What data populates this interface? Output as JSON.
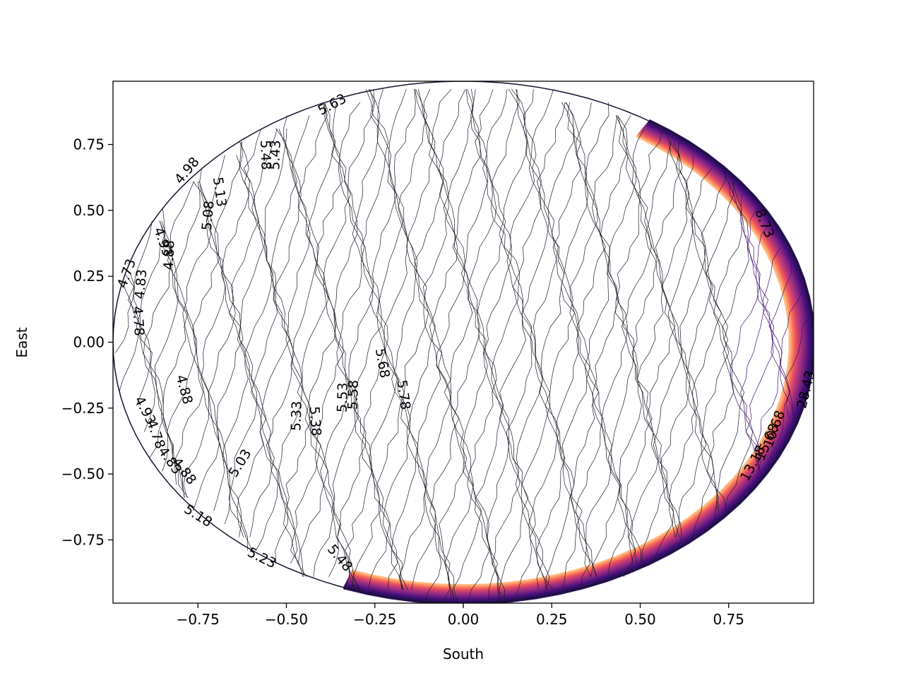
{
  "chart_data": {
    "type": "contour",
    "xlabel": "South",
    "ylabel": "East",
    "xlim": [
      -0.99,
      0.99
    ],
    "ylim": [
      -0.99,
      0.99
    ],
    "xticks": [
      -0.75,
      -0.5,
      -0.25,
      0.0,
      0.25,
      0.5,
      0.75
    ],
    "yticks": [
      -0.75,
      -0.5,
      -0.25,
      0.0,
      0.25,
      0.5,
      0.75
    ],
    "xtick_labels": [
      "−0.75",
      "−0.50",
      "−0.25",
      "0.00",
      "0.25",
      "0.50",
      "0.75"
    ],
    "ytick_labels": [
      "−0.75",
      "−0.50",
      "−0.25",
      "0.00",
      "0.25",
      "0.50",
      "0.75"
    ],
    "domain_shape": "unit disk",
    "colormap": "magma",
    "level_range": [
      4.38,
      28.43
    ],
    "contour_labels": [
      {
        "text": "5.63",
        "x": -0.37,
        "y": 0.9,
        "rotation": -28
      },
      {
        "text": "4.98",
        "x": -0.78,
        "y": 0.65,
        "rotation": -50
      },
      {
        "text": "5.13",
        "x": -0.69,
        "y": 0.57,
        "rotation": 82
      },
      {
        "text": "5.08",
        "x": -0.72,
        "y": 0.48,
        "rotation": -85
      },
      {
        "text": "5.43",
        "x": -0.53,
        "y": 0.71,
        "rotation": -88
      },
      {
        "text": "5.48",
        "x": -0.56,
        "y": 0.71,
        "rotation": 88
      },
      {
        "text": "4.88",
        "x": -0.83,
        "y": 0.33,
        "rotation": -88
      },
      {
        "text": "4.93",
        "x": -0.85,
        "y": 0.38,
        "rotation": 70
      },
      {
        "text": "4.73",
        "x": -0.95,
        "y": 0.26,
        "rotation": -70
      },
      {
        "text": "4.83",
        "x": -0.91,
        "y": 0.22,
        "rotation": -85
      },
      {
        "text": "4.78",
        "x": -0.92,
        "y": 0.08,
        "rotation": 86
      },
      {
        "text": "4.88",
        "x": -0.79,
        "y": -0.18,
        "rotation": 75
      },
      {
        "text": "5.68",
        "x": -0.23,
        "y": -0.08,
        "rotation": 80
      },
      {
        "text": "5.78",
        "x": -0.17,
        "y": -0.2,
        "rotation": 82
      },
      {
        "text": "5.53",
        "x": -0.34,
        "y": -0.21,
        "rotation": -88
      },
      {
        "text": "5.58",
        "x": -0.31,
        "y": -0.2,
        "rotation": -88
      },
      {
        "text": "5.33",
        "x": -0.47,
        "y": -0.28,
        "rotation": -88
      },
      {
        "text": "5.38",
        "x": -0.42,
        "y": -0.3,
        "rotation": 86
      },
      {
        "text": "4.93",
        "x": -0.9,
        "y": -0.26,
        "rotation": 62
      },
      {
        "text": "4.78",
        "x": -0.87,
        "y": -0.35,
        "rotation": 70
      },
      {
        "text": "4.83",
        "x": -0.83,
        "y": -0.45,
        "rotation": 55
      },
      {
        "text": "4.88",
        "x": -0.79,
        "y": -0.49,
        "rotation": 52
      },
      {
        "text": "5.03",
        "x": -0.63,
        "y": -0.46,
        "rotation": -58
      },
      {
        "text": "5.18",
        "x": -0.75,
        "y": -0.66,
        "rotation": 32
      },
      {
        "text": "5.23",
        "x": -0.57,
        "y": -0.82,
        "rotation": 26
      },
      {
        "text": "5.48",
        "x": -0.35,
        "y": -0.82,
        "rotation": 50
      },
      {
        "text": "8.73",
        "x": 0.85,
        "y": 0.45,
        "rotation": 68
      },
      {
        "text": "13.18",
        "x": 0.82,
        "y": -0.46,
        "rotation": -62
      },
      {
        "text": "10.68",
        "x": 0.88,
        "y": -0.33,
        "rotation": -70
      },
      {
        "text": "15.68",
        "x": 0.86,
        "y": -0.38,
        "rotation": -66
      },
      {
        "text": "28.43",
        "x": 0.97,
        "y": -0.18,
        "rotation": -76
      }
    ]
  }
}
